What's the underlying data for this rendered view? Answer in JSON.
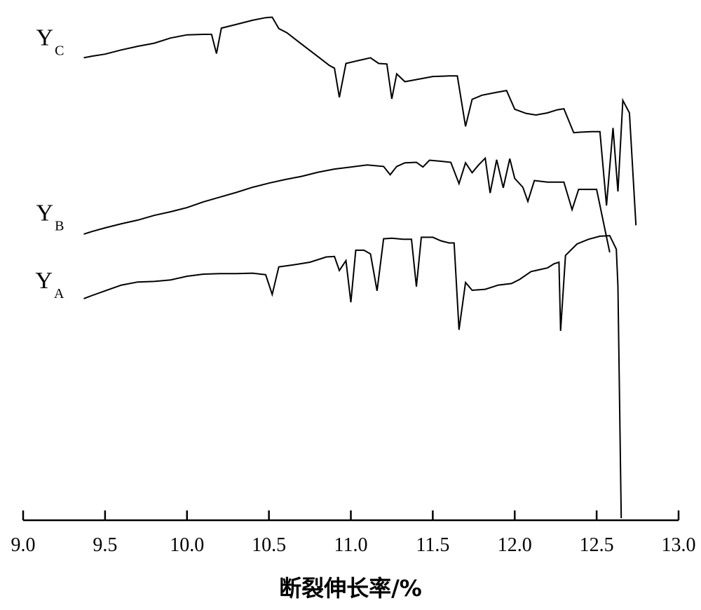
{
  "chart_data": {
    "type": "line",
    "xlabel": "断裂伸长率/%",
    "ylabel": "",
    "xlim": [
      9.0,
      13.0
    ],
    "ylim": [
      0,
      100
    ],
    "xticks": [
      "9.0",
      "9.5",
      "10.0",
      "10.5",
      "11.0",
      "11.5",
      "12.0",
      "12.5",
      "13.0"
    ],
    "grid": false,
    "series": [
      {
        "name": "Y",
        "subscript": "C",
        "points": [
          [
            9.37,
            88.9
          ],
          [
            9.42,
            89.2
          ],
          [
            9.5,
            89.6
          ],
          [
            9.6,
            90.4
          ],
          [
            9.7,
            91.1
          ],
          [
            9.8,
            91.7
          ],
          [
            9.9,
            92.7
          ],
          [
            10.0,
            93.3
          ],
          [
            10.1,
            93.4
          ],
          [
            10.15,
            93.4
          ],
          [
            10.18,
            89.7
          ],
          [
            10.21,
            94.6
          ],
          [
            10.3,
            95.3
          ],
          [
            10.4,
            96.1
          ],
          [
            10.48,
            96.6
          ],
          [
            10.52,
            96.7
          ],
          [
            10.56,
            94.5
          ],
          [
            10.61,
            93.7
          ],
          [
            10.7,
            91.5
          ],
          [
            10.8,
            89.1
          ],
          [
            10.87,
            87.4
          ],
          [
            10.9,
            86.9
          ],
          [
            10.93,
            81.3
          ],
          [
            10.97,
            87.8
          ],
          [
            11.05,
            88.4
          ],
          [
            11.12,
            88.9
          ],
          [
            11.17,
            87.8
          ],
          [
            11.22,
            87.7
          ],
          [
            11.25,
            81.0
          ],
          [
            11.28,
            85.8
          ],
          [
            11.33,
            84.3
          ],
          [
            11.4,
            84.7
          ],
          [
            11.5,
            85.3
          ],
          [
            11.6,
            85.4
          ],
          [
            11.65,
            85.4
          ],
          [
            11.7,
            75.7
          ],
          [
            11.74,
            80.9
          ],
          [
            11.8,
            81.7
          ],
          [
            11.88,
            82.2
          ],
          [
            11.95,
            82.6
          ],
          [
            12.0,
            79.0
          ],
          [
            12.07,
            78.2
          ],
          [
            12.13,
            77.9
          ],
          [
            12.2,
            78.3
          ],
          [
            12.26,
            78.9
          ],
          [
            12.3,
            79.1
          ],
          [
            12.36,
            74.5
          ],
          [
            12.4,
            74.6
          ],
          [
            12.47,
            74.7
          ],
          [
            12.52,
            74.7
          ],
          [
            12.56,
            60.5
          ],
          [
            12.6,
            75.4
          ],
          [
            12.63,
            63.2
          ],
          [
            12.66,
            80.7
          ],
          [
            12.7,
            78.3
          ],
          [
            12.74,
            56.7
          ]
        ]
      },
      {
        "name": "Y",
        "subscript": "B",
        "points": [
          [
            9.37,
            55.0
          ],
          [
            9.42,
            55.5
          ],
          [
            9.5,
            56.2
          ],
          [
            9.6,
            57.0
          ],
          [
            9.7,
            57.7
          ],
          [
            9.8,
            58.6
          ],
          [
            9.9,
            59.3
          ],
          [
            10.0,
            60.1
          ],
          [
            10.1,
            61.2
          ],
          [
            10.2,
            62.1
          ],
          [
            10.3,
            63.0
          ],
          [
            10.4,
            64.0
          ],
          [
            10.5,
            64.8
          ],
          [
            10.6,
            65.5
          ],
          [
            10.7,
            66.1
          ],
          [
            10.8,
            66.9
          ],
          [
            10.9,
            67.5
          ],
          [
            11.0,
            67.9
          ],
          [
            11.1,
            68.3
          ],
          [
            11.2,
            68.0
          ],
          [
            11.24,
            66.4
          ],
          [
            11.28,
            68.0
          ],
          [
            11.33,
            68.7
          ],
          [
            11.4,
            68.8
          ],
          [
            11.44,
            67.9
          ],
          [
            11.48,
            69.2
          ],
          [
            11.55,
            69.0
          ],
          [
            11.61,
            68.8
          ],
          [
            11.66,
            64.7
          ],
          [
            11.7,
            68.7
          ],
          [
            11.74,
            66.8
          ],
          [
            11.78,
            68.3
          ],
          [
            11.82,
            69.6
          ],
          [
            11.85,
            62.9
          ],
          [
            11.89,
            69.3
          ],
          [
            11.93,
            63.9
          ],
          [
            11.97,
            69.5
          ],
          [
            12.0,
            65.7
          ],
          [
            12.05,
            64.0
          ],
          [
            12.08,
            61.3
          ],
          [
            12.12,
            65.3
          ],
          [
            12.2,
            65.0
          ],
          [
            12.3,
            65.0
          ],
          [
            12.35,
            59.7
          ],
          [
            12.39,
            63.6
          ],
          [
            12.45,
            63.6
          ],
          [
            12.5,
            63.6
          ],
          [
            12.55,
            56.0
          ],
          [
            12.58,
            51.5
          ]
        ]
      },
      {
        "name": "Y",
        "subscript": "A",
        "points": [
          [
            9.37,
            42.6
          ],
          [
            9.42,
            43.2
          ],
          [
            9.5,
            44.1
          ],
          [
            9.6,
            45.2
          ],
          [
            9.7,
            45.8
          ],
          [
            9.8,
            45.9
          ],
          [
            9.9,
            46.2
          ],
          [
            10.0,
            46.9
          ],
          [
            10.1,
            47.3
          ],
          [
            10.2,
            47.4
          ],
          [
            10.3,
            47.4
          ],
          [
            10.4,
            47.5
          ],
          [
            10.48,
            47.2
          ],
          [
            10.52,
            43.4
          ],
          [
            10.56,
            48.7
          ],
          [
            10.65,
            49.1
          ],
          [
            10.75,
            49.6
          ],
          [
            10.85,
            50.6
          ],
          [
            10.9,
            50.7
          ],
          [
            10.93,
            48.0
          ],
          [
            10.97,
            49.9
          ],
          [
            11.0,
            41.9
          ],
          [
            11.03,
            51.9
          ],
          [
            11.08,
            51.9
          ],
          [
            11.12,
            51.2
          ],
          [
            11.16,
            44.1
          ],
          [
            11.2,
            54.1
          ],
          [
            11.25,
            54.2
          ],
          [
            11.32,
            54.0
          ],
          [
            11.37,
            54.0
          ],
          [
            11.4,
            44.9
          ],
          [
            11.43,
            54.4
          ],
          [
            11.5,
            54.4
          ],
          [
            11.55,
            53.7
          ],
          [
            11.6,
            53.3
          ],
          [
            11.63,
            53.3
          ],
          [
            11.66,
            36.6
          ],
          [
            11.7,
            45.7
          ],
          [
            11.74,
            44.2
          ],
          [
            11.82,
            44.4
          ],
          [
            11.9,
            45.2
          ],
          [
            11.98,
            45.5
          ],
          [
            12.03,
            46.3
          ],
          [
            12.1,
            47.8
          ],
          [
            12.2,
            48.5
          ],
          [
            12.24,
            49.3
          ],
          [
            12.27,
            49.6
          ],
          [
            12.28,
            36.4
          ],
          [
            12.31,
            50.9
          ],
          [
            12.38,
            53.1
          ],
          [
            12.45,
            54.0
          ],
          [
            12.52,
            54.6
          ],
          [
            12.58,
            54.7
          ],
          [
            12.62,
            52.1
          ],
          [
            12.63,
            45.0
          ],
          [
            12.65,
            0.4
          ]
        ]
      }
    ],
    "annotations": [
      {
        "text": "Y",
        "sub": "C",
        "x": 9.25,
        "y": 91.3
      },
      {
        "text": "Y",
        "sub": "B",
        "x": 9.25,
        "y": 57.6
      },
      {
        "text": "Y",
        "sub": "A",
        "x": 9.25,
        "y": 44.6
      }
    ]
  }
}
